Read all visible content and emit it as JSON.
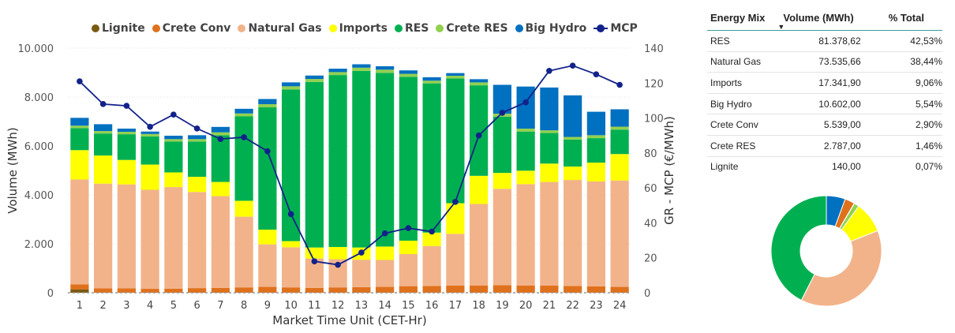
{
  "chart_data": [
    {
      "type": "bar",
      "stacked": true,
      "categories": [
        "1",
        "2",
        "3",
        "4",
        "5",
        "6",
        "7",
        "8",
        "9",
        "10",
        "11",
        "12",
        "13",
        "14",
        "15",
        "16",
        "17",
        "18",
        "19",
        "20",
        "21",
        "22",
        "23",
        "24"
      ],
      "xlabel": "Market Time Unit (CET-Hr)",
      "ylabel": "Volume (MWh)",
      "y2label": "GR - MCP (€/MWh)",
      "ylim": [
        0,
        10000
      ],
      "y2lim": [
        0,
        140
      ],
      "yticks": [
        "0",
        "2.000",
        "4.000",
        "6.000",
        "8.000",
        "10.000"
      ],
      "y2ticks": [
        "0",
        "20",
        "40",
        "60",
        "80",
        "100",
        "120",
        "140"
      ],
      "grid": true,
      "legend_position": "top",
      "series": [
        {
          "name": "Lignite",
          "color": "#7a5a10",
          "values": [
            140,
            0,
            0,
            0,
            0,
            0,
            0,
            0,
            0,
            0,
            0,
            0,
            0,
            0,
            0,
            0,
            0,
            0,
            0,
            0,
            0,
            0,
            0,
            0
          ]
        },
        {
          "name": "Crete Conv",
          "color": "#e0711c",
          "values": [
            200,
            180,
            180,
            160,
            170,
            190,
            200,
            220,
            240,
            220,
            200,
            220,
            230,
            240,
            270,
            280,
            290,
            300,
            310,
            300,
            290,
            280,
            260,
            240
          ]
        },
        {
          "name": "Natural Gas",
          "color": "#f2b38a",
          "values": [
            4290,
            4280,
            4250,
            4050,
            4150,
            3930,
            3750,
            2890,
            1740,
            1640,
            1200,
            1150,
            1120,
            1100,
            1310,
            1630,
            2120,
            3330,
            3940,
            4140,
            4240,
            4330,
            4290,
            4350
          ]
        },
        {
          "name": "Imports",
          "color": "#ffff00",
          "values": [
            1200,
            1150,
            1000,
            1030,
            600,
            620,
            580,
            650,
            600,
            250,
            450,
            500,
            500,
            550,
            550,
            550,
            1250,
            1150,
            650,
            550,
            750,
            550,
            770,
            1080
          ]
        },
        {
          "name": "RES",
          "color": "#00b050",
          "values": [
            900,
            900,
            1050,
            1150,
            1260,
            1440,
            1910,
            3450,
            5000,
            6200,
            6770,
            7030,
            7220,
            7100,
            6700,
            6100,
            5100,
            3700,
            2300,
            1600,
            1250,
            1100,
            1000,
            1000
          ]
        },
        {
          "name": "Crete RES",
          "color": "#92d050",
          "values": [
            100,
            100,
            100,
            100,
            100,
            100,
            120,
            120,
            130,
            130,
            120,
            120,
            130,
            130,
            120,
            110,
            110,
            120,
            120,
            120,
            110,
            110,
            120,
            120
          ]
        },
        {
          "name": "Big Hydro",
          "color": "#0070c0",
          "values": [
            320,
            280,
            130,
            100,
            140,
            160,
            220,
            190,
            210,
            160,
            140,
            140,
            140,
            140,
            140,
            140,
            110,
            130,
            1180,
            1720,
            1750,
            1700,
            960,
            710
          ]
        }
      ],
      "line_series": {
        "name": "MCP",
        "color": "#13228a",
        "axis": "right",
        "values": [
          121,
          108,
          107,
          95,
          102,
          94,
          88,
          89,
          81,
          45,
          18,
          16,
          23,
          34,
          37,
          35,
          52,
          90,
          103,
          109,
          127,
          130,
          125,
          119
        ]
      }
    },
    {
      "type": "pie",
      "donut": true,
      "labels": [
        "Big Hydro",
        "Crete Conv",
        "Lignite",
        "Crete RES",
        "Imports",
        "Natural Gas",
        "RES"
      ],
      "colors": [
        "#0070c0",
        "#e0711c",
        "#7a5a10",
        "#92d050",
        "#ffff00",
        "#f2b38a",
        "#00b050"
      ],
      "values": [
        10602,
        5539,
        140,
        2787,
        17341.9,
        73535.66,
        81378.62
      ]
    }
  ],
  "legend": [
    "Lignite",
    "Crete Conv",
    "Natural Gas",
    "Imports",
    "RES",
    "Crete RES",
    "Big Hydro",
    "MCP"
  ],
  "table": {
    "headers": {
      "col1": "Energy Mix",
      "col2": "Volume (MWh)",
      "col3": "% Total"
    },
    "rows": [
      {
        "name": "RES",
        "volume": "81.378,62",
        "pct": "42,53%"
      },
      {
        "name": "Natural Gas",
        "volume": "73.535,66",
        "pct": "38,44%"
      },
      {
        "name": "Imports",
        "volume": "17.341,90",
        "pct": "9,06%"
      },
      {
        "name": "Big Hydro",
        "volume": "10.602,00",
        "pct": "5,54%"
      },
      {
        "name": "Crete Conv",
        "volume": "5.539,00",
        "pct": "2,90%"
      },
      {
        "name": "Crete RES",
        "volume": "2.787,00",
        "pct": "1,46%"
      },
      {
        "name": "Lignite",
        "volume": "140,00",
        "pct": "0,07%"
      }
    ]
  }
}
